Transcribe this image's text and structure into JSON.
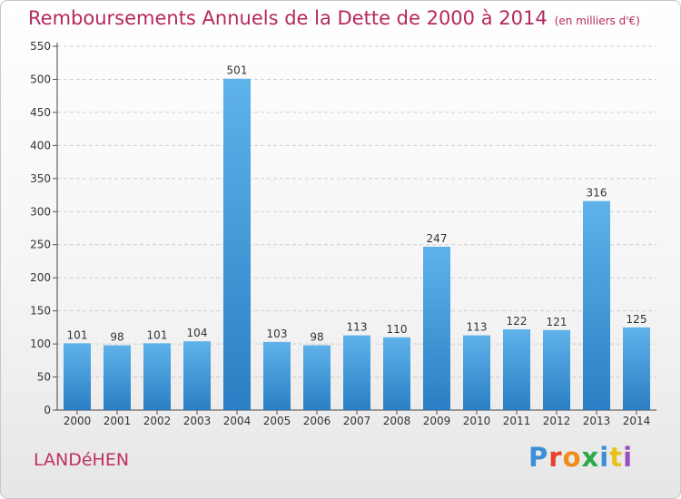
{
  "header": {
    "title": "Remboursements Annuels de la Dette de 2000 à 2014",
    "unit": "(en milliers d'€)"
  },
  "footer": {
    "commune": "LANDéHEN",
    "logo_text": "Proxiti",
    "logo_colors": [
      "#3a8fd8",
      "#e8402a",
      "#f08a1c",
      "#2aa84a",
      "#3a8fd8",
      "#e8c21c",
      "#9a4fc0"
    ]
  },
  "colors": {
    "bar": "#3d9be0",
    "bar_light": "#5aaee8",
    "bar_dark": "#2a7fc8",
    "title": "#b5285e"
  },
  "chart_data": {
    "type": "bar",
    "title": "Remboursements Annuels de la Dette de 2000 à 2014",
    "subtitle": "(en milliers d'€)",
    "categories": [
      "2000",
      "2001",
      "2002",
      "2003",
      "2004",
      "2005",
      "2006",
      "2007",
      "2008",
      "2009",
      "2010",
      "2011",
      "2012",
      "2013",
      "2014"
    ],
    "values": [
      101,
      98,
      101,
      104,
      501,
      103,
      98,
      113,
      110,
      247,
      113,
      122,
      121,
      316,
      125
    ],
    "ylim": [
      0,
      550
    ],
    "yticks": [
      0,
      50,
      100,
      150,
      200,
      250,
      300,
      350,
      400,
      450,
      500,
      550
    ],
    "grid": true
  }
}
